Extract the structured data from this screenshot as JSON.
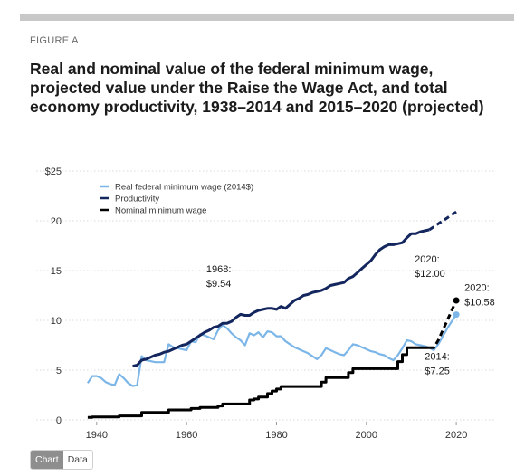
{
  "figure_label": "FIGURE A",
  "title": "Real and nominal value of the federal minimum wage, projected value under the Raise the Wage Act, and total economy productivity, 1938–2014 and 2015–2020 (projected)",
  "toggle": {
    "chart_label": "Chart",
    "data_label": "Data"
  },
  "colors": {
    "real": "#7cb6e8",
    "productivity": "#14265e",
    "nominal": "#000000",
    "grid": "#d9d9d9"
  },
  "chart_data": {
    "type": "line",
    "xlim": [
      1935,
      2023
    ],
    "ylim": [
      0,
      25
    ],
    "x_ticks": [
      "1940",
      "1960",
      "1980",
      "2000",
      "2020"
    ],
    "y_ticks": [
      "$25",
      "20",
      "15",
      "10",
      "5",
      "0"
    ],
    "grid": true,
    "legend_position": "top-left",
    "series": [
      {
        "name": "Real federal minimum wage (2014$)",
        "key": "real",
        "points": [
          [
            1938,
            3.7
          ],
          [
            1939,
            4.4
          ],
          [
            1940,
            4.4
          ],
          [
            1941,
            4.2
          ],
          [
            1942,
            3.8
          ],
          [
            1943,
            3.6
          ],
          [
            1944,
            3.5
          ],
          [
            1945,
            4.6
          ],
          [
            1946,
            4.2
          ],
          [
            1947,
            3.7
          ],
          [
            1948,
            3.4
          ],
          [
            1949,
            3.5
          ],
          [
            1950,
            6.4
          ],
          [
            1951,
            6.0
          ],
          [
            1952,
            5.9
          ],
          [
            1953,
            5.8
          ],
          [
            1954,
            5.8
          ],
          [
            1955,
            5.8
          ],
          [
            1956,
            7.6
          ],
          [
            1957,
            7.3
          ],
          [
            1958,
            7.2
          ],
          [
            1959,
            7.1
          ],
          [
            1960,
            7.0
          ],
          [
            1961,
            7.9
          ],
          [
            1962,
            7.8
          ],
          [
            1963,
            8.6
          ],
          [
            1964,
            8.5
          ],
          [
            1965,
            8.3
          ],
          [
            1966,
            8.1
          ],
          [
            1967,
            9.0
          ],
          [
            1968,
            9.54
          ],
          [
            1969,
            9.2
          ],
          [
            1970,
            8.7
          ],
          [
            1971,
            8.3
          ],
          [
            1972,
            8.0
          ],
          [
            1973,
            7.5
          ],
          [
            1974,
            8.7
          ],
          [
            1975,
            8.5
          ],
          [
            1976,
            8.8
          ],
          [
            1977,
            8.3
          ],
          [
            1978,
            8.9
          ],
          [
            1979,
            8.8
          ],
          [
            1980,
            8.4
          ],
          [
            1981,
            8.4
          ],
          [
            1982,
            7.9
          ],
          [
            1983,
            7.6
          ],
          [
            1984,
            7.3
          ],
          [
            1985,
            7.1
          ],
          [
            1986,
            6.9
          ],
          [
            1987,
            6.7
          ],
          [
            1988,
            6.4
          ],
          [
            1989,
            6.1
          ],
          [
            1990,
            6.5
          ],
          [
            1991,
            7.2
          ],
          [
            1992,
            7.0
          ],
          [
            1993,
            6.8
          ],
          [
            1994,
            6.6
          ],
          [
            1995,
            6.5
          ],
          [
            1996,
            7.0
          ],
          [
            1997,
            7.6
          ],
          [
            1998,
            7.5
          ],
          [
            1999,
            7.3
          ],
          [
            2000,
            7.1
          ],
          [
            2001,
            6.9
          ],
          [
            2002,
            6.8
          ],
          [
            2003,
            6.6
          ],
          [
            2004,
            6.5
          ],
          [
            2005,
            6.2
          ],
          [
            2006,
            6.0
          ],
          [
            2007,
            6.5
          ],
          [
            2008,
            7.2
          ],
          [
            2009,
            8.0
          ],
          [
            2010,
            7.9
          ],
          [
            2011,
            7.6
          ],
          [
            2012,
            7.5
          ],
          [
            2013,
            7.4
          ],
          [
            2014,
            7.25
          ],
          [
            2015,
            7.0
          ],
          [
            2016,
            7.6
          ],
          [
            2017,
            8.4
          ],
          [
            2018,
            9.2
          ],
          [
            2019,
            9.9
          ],
          [
            2020,
            10.58
          ]
        ]
      },
      {
        "name": "Productivity",
        "key": "productivity",
        "points": [
          [
            1948,
            5.4
          ],
          [
            1949,
            5.5
          ],
          [
            1950,
            6.0
          ],
          [
            1951,
            6.1
          ],
          [
            1952,
            6.3
          ],
          [
            1953,
            6.5
          ],
          [
            1954,
            6.6
          ],
          [
            1955,
            6.8
          ],
          [
            1956,
            6.9
          ],
          [
            1957,
            7.1
          ],
          [
            1958,
            7.3
          ],
          [
            1959,
            7.5
          ],
          [
            1960,
            7.6
          ],
          [
            1961,
            7.9
          ],
          [
            1962,
            8.2
          ],
          [
            1963,
            8.5
          ],
          [
            1964,
            8.8
          ],
          [
            1965,
            9.0
          ],
          [
            1966,
            9.3
          ],
          [
            1967,
            9.4
          ],
          [
            1968,
            9.7
          ],
          [
            1969,
            9.7
          ],
          [
            1970,
            9.9
          ],
          [
            1971,
            10.3
          ],
          [
            1972,
            10.6
          ],
          [
            1973,
            10.5
          ],
          [
            1974,
            10.5
          ],
          [
            1975,
            10.8
          ],
          [
            1976,
            11.0
          ],
          [
            1977,
            11.1
          ],
          [
            1978,
            11.2
          ],
          [
            1979,
            11.2
          ],
          [
            1980,
            11.1
          ],
          [
            1981,
            11.4
          ],
          [
            1982,
            11.2
          ],
          [
            1983,
            11.6
          ],
          [
            1984,
            12.0
          ],
          [
            1985,
            12.2
          ],
          [
            1986,
            12.5
          ],
          [
            1987,
            12.6
          ],
          [
            1988,
            12.8
          ],
          [
            1989,
            12.9
          ],
          [
            1990,
            13.0
          ],
          [
            1991,
            13.2
          ],
          [
            1992,
            13.5
          ],
          [
            1993,
            13.6
          ],
          [
            1994,
            13.7
          ],
          [
            1995,
            13.8
          ],
          [
            1996,
            14.2
          ],
          [
            1997,
            14.4
          ],
          [
            1998,
            14.8
          ],
          [
            1999,
            15.2
          ],
          [
            2000,
            15.6
          ],
          [
            2001,
            16.0
          ],
          [
            2002,
            16.6
          ],
          [
            2003,
            17.1
          ],
          [
            2004,
            17.4
          ],
          [
            2005,
            17.6
          ],
          [
            2006,
            17.6
          ],
          [
            2007,
            17.7
          ],
          [
            2008,
            17.8
          ],
          [
            2009,
            18.3
          ],
          [
            2010,
            18.7
          ],
          [
            2011,
            18.7
          ],
          [
            2012,
            18.9
          ],
          [
            2013,
            19.0
          ],
          [
            2014,
            19.1
          ]
        ],
        "projected": [
          [
            2014,
            19.1
          ],
          [
            2015,
            19.4
          ],
          [
            2016,
            19.7
          ],
          [
            2017,
            20.0
          ],
          [
            2018,
            20.3
          ],
          [
            2019,
            20.6
          ],
          [
            2020,
            20.9
          ]
        ]
      },
      {
        "name": "Nominal minimum wage",
        "key": "nominal",
        "points": [
          [
            1938,
            0.25
          ],
          [
            1939,
            0.3
          ],
          [
            1945,
            0.4
          ],
          [
            1950,
            0.75
          ],
          [
            1956,
            1.0
          ],
          [
            1961,
            1.15
          ],
          [
            1963,
            1.25
          ],
          [
            1967,
            1.4
          ],
          [
            1968,
            1.6
          ],
          [
            1974,
            2.0
          ],
          [
            1975,
            2.1
          ],
          [
            1976,
            2.3
          ],
          [
            1978,
            2.65
          ],
          [
            1979,
            2.9
          ],
          [
            1980,
            3.1
          ],
          [
            1981,
            3.35
          ],
          [
            1990,
            3.8
          ],
          [
            1991,
            4.25
          ],
          [
            1996,
            4.75
          ],
          [
            1997,
            5.15
          ],
          [
            2007,
            5.85
          ],
          [
            2008,
            6.55
          ],
          [
            2009,
            7.25
          ],
          [
            2014,
            7.25
          ]
        ],
        "projected": [
          [
            2014,
            7.25
          ],
          [
            2015,
            7.25
          ],
          [
            2016,
            8.0
          ],
          [
            2017,
            9.0
          ],
          [
            2018,
            10.0
          ],
          [
            2019,
            11.0
          ],
          [
            2020,
            12.0
          ]
        ]
      }
    ],
    "annotations": [
      {
        "lines": [
          "1968:",
          "$9.54"
        ],
        "x": 1968,
        "y": 9.54
      },
      {
        "lines": [
          "2014:",
          "$7.25"
        ],
        "x": 2014,
        "y": 7.25
      },
      {
        "lines": [
          "2020:",
          "$12.00"
        ],
        "x": 2020,
        "y": 12.0
      },
      {
        "lines": [
          "2020:",
          "$10.58"
        ],
        "x": 2020,
        "y": 10.58
      }
    ]
  }
}
